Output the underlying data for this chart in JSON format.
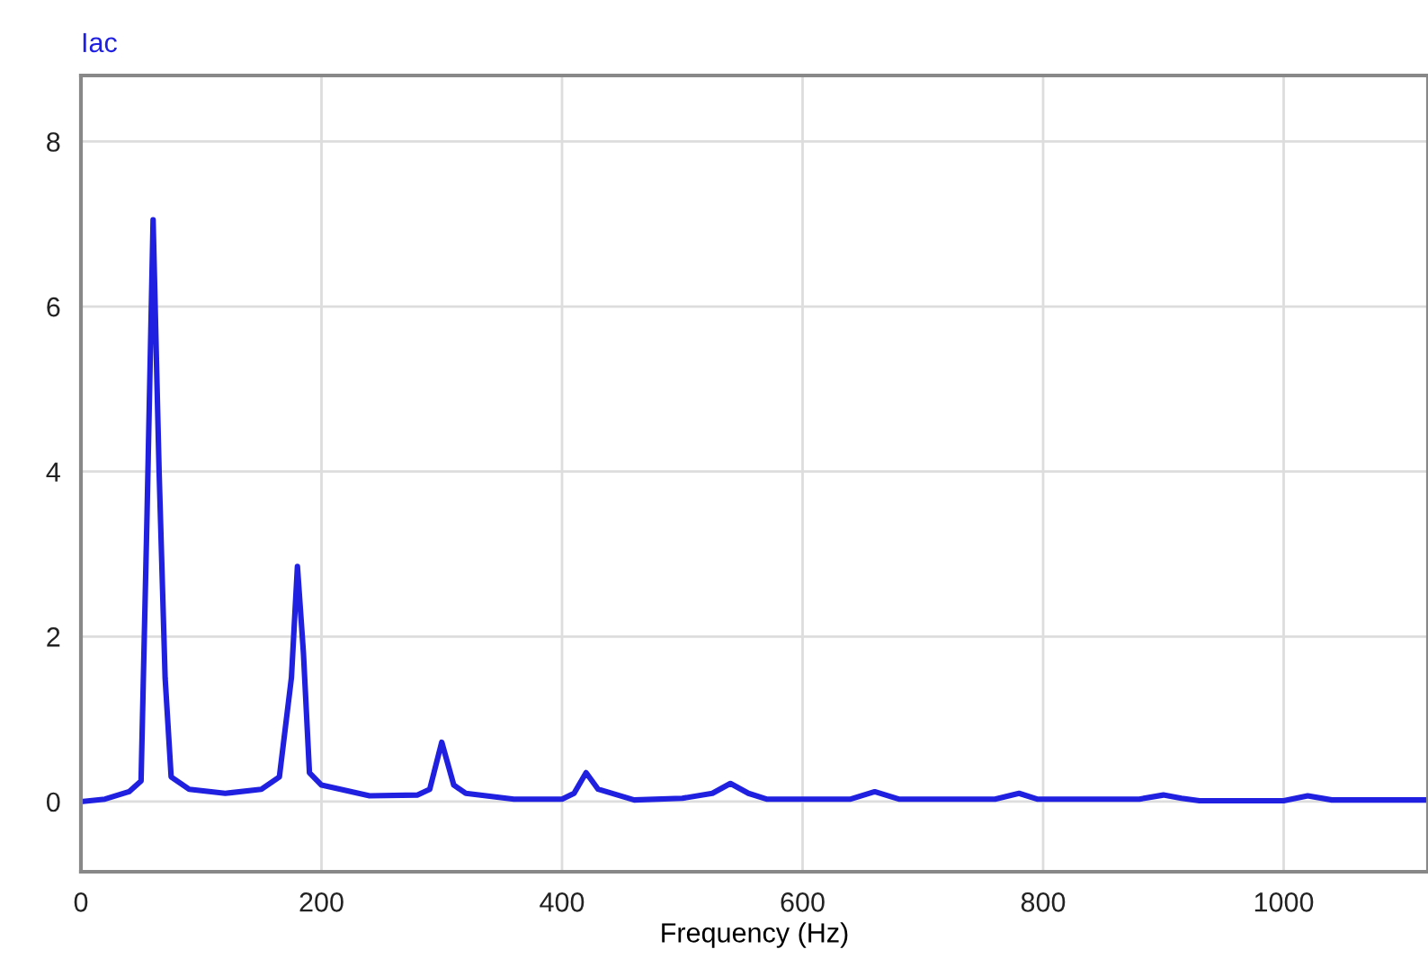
{
  "chart_data": {
    "type": "line",
    "xlabel": "Frequency (Hz)",
    "xlim": [
      0,
      1120
    ],
    "xticks": [
      0,
      200,
      400,
      600,
      800,
      1000
    ],
    "ylim": [
      -0.85,
      8.8
    ],
    "yticks": [
      0,
      2,
      4,
      6,
      8
    ],
    "grid": true,
    "legend": "top left",
    "line_style": "solid",
    "marker": "none",
    "series": [
      {
        "name": "Iac",
        "color": "#2020e0",
        "x": [
          0,
          20,
          40,
          50,
          55,
          60,
          65,
          70,
          75,
          90,
          120,
          150,
          165,
          175,
          180,
          185,
          190,
          200,
          240,
          280,
          290,
          300,
          310,
          320,
          360,
          400,
          410,
          420,
          430,
          460,
          500,
          525,
          540,
          555,
          570,
          640,
          660,
          680,
          760,
          780,
          795,
          880,
          900,
          915,
          930,
          1000,
          1020,
          1040,
          1120
        ],
        "values": [
          0.0,
          0.03,
          0.12,
          0.25,
          3.5,
          7.05,
          4,
          1.5,
          0.3,
          0.15,
          0.1,
          0.15,
          0.3,
          1.5,
          2.85,
          1.8,
          0.35,
          0.2,
          0.07,
          0.08,
          0.15,
          0.72,
          0.2,
          0.1,
          0.03,
          0.03,
          0.1,
          0.35,
          0.15,
          0.02,
          0.04,
          0.1,
          0.22,
          0.1,
          0.03,
          0.03,
          0.12,
          0.03,
          0.03,
          0.1,
          0.03,
          0.03,
          0.08,
          0.04,
          0.01,
          0.01,
          0.07,
          0.02,
          0.02
        ]
      }
    ]
  }
}
